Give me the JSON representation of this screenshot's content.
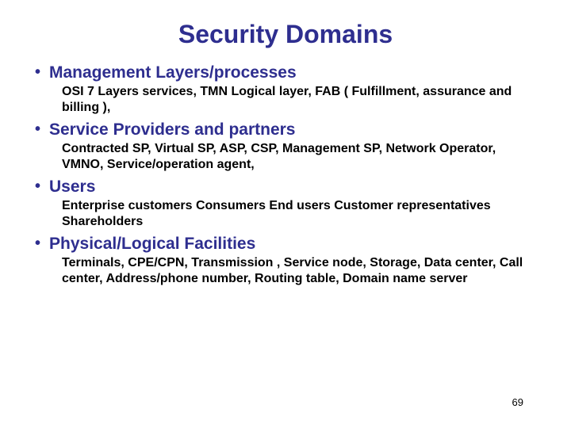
{
  "title": "Security Domains",
  "bullets": [
    {
      "heading": "Management Layers/processes",
      "description": "OSI 7 Layers services, TMN Logical layer, FAB ( Fulfillment, assurance and billing ),"
    },
    {
      "heading": "Service Providers and partners",
      "description": "Contracted SP, Virtual SP, ASP, CSP, Management SP, Network Operator, VMNO, Service/operation agent,"
    },
    {
      "heading": "Users",
      "description": "Enterprise customers Consumers End users Customer representatives Shareholders"
    },
    {
      "heading": "Physical/Logical  Facilities",
      "description": "Terminals, CPE/CPN, Transmission , Service node, Storage, Data center, Call center, Address/phone number, Routing table, Domain name server"
    }
  ],
  "pageNumber": "69",
  "colors": {
    "title": "#2e2e8f",
    "heading": "#2e2e8f",
    "body": "#000000",
    "background": "#ffffff"
  },
  "fontSizes": {
    "title": 32,
    "heading": 21,
    "body": 16,
    "pageNum": 13
  }
}
